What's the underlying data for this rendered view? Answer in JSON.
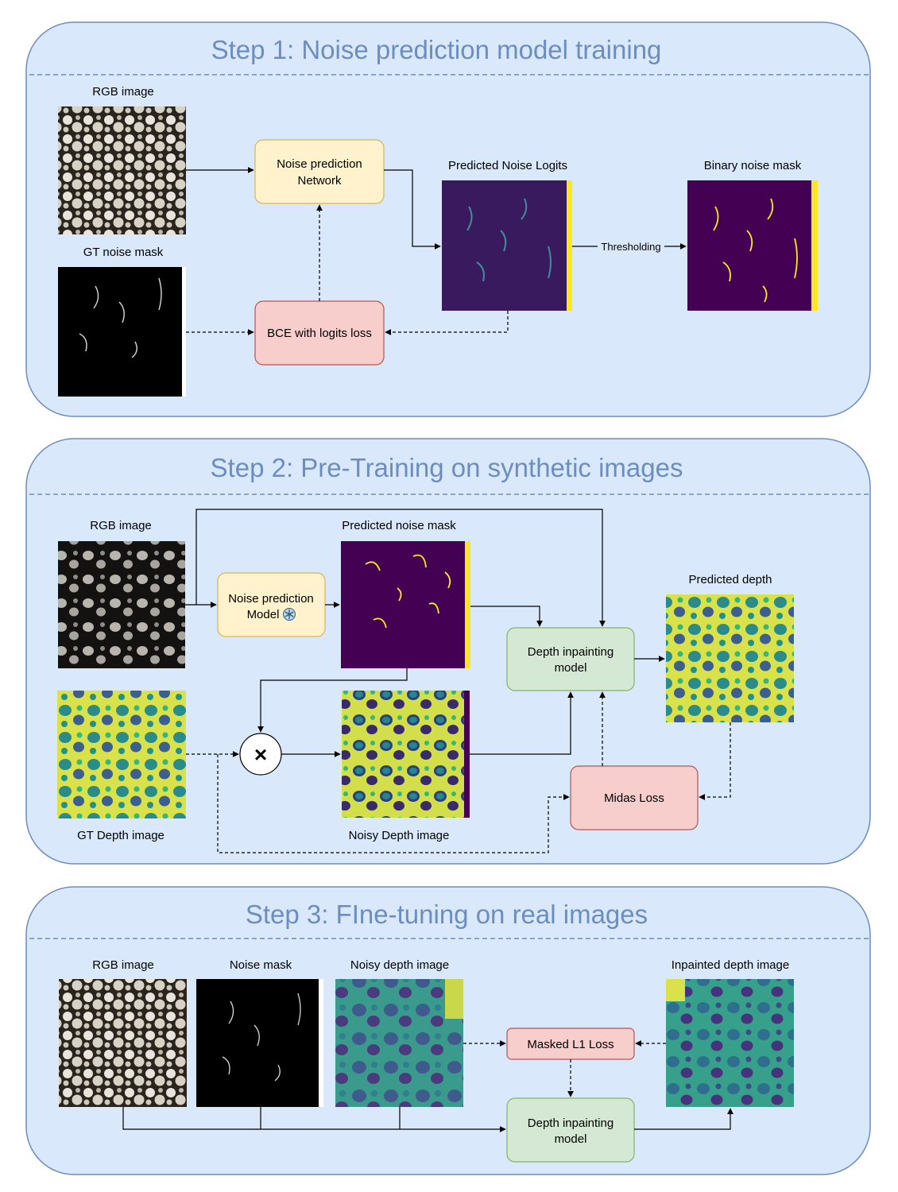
{
  "step1": {
    "title": "Step 1: Noise prediction model training",
    "rgb_label": "RGB image",
    "gt_mask_label": "GT noise mask",
    "network_line1": "Noise prediction",
    "network_line2": "Network",
    "loss_label": "BCE with logits loss",
    "logits_label": "Predicted Noise Logits",
    "binary_label": "Binary noise mask",
    "threshold_label": "Thresholding"
  },
  "step2": {
    "title": "Step 2: Pre-Training on synthetic images",
    "rgb_label": "RGB image",
    "pred_mask_label": "Predicted noise mask",
    "model_line1": "Noise prediction",
    "model_line2": "Model",
    "frozen_icon": "snowflake-icon",
    "inpaint_line1": "Depth inpainting",
    "inpaint_line2": "model",
    "pred_depth_label": "Predicted depth",
    "gt_depth_label": "GT Depth image",
    "noisy_depth_label": "Noisy Depth image",
    "multiply_symbol": "×",
    "loss_label": "Midas Loss"
  },
  "step3": {
    "title": "Step 3: FIne-tuning on real images",
    "rgb_label": "RGB image",
    "mask_label": "Noise mask",
    "noisy_label": "Noisy depth image",
    "inpainted_label": "Inpainted depth image",
    "loss_label": "Masked L1 Loss",
    "inpaint_line1": "Depth inpainting",
    "inpaint_line2": "model"
  },
  "colors": {
    "panel_fill": "#dae8fc",
    "panel_stroke": "#6c8ebf",
    "yellow_box": "#fff2cc",
    "red_box": "#f8cecc",
    "green_box": "#d5e8d4",
    "viridis_dark": "#440154",
    "viridis_yellow": "#fde725"
  }
}
